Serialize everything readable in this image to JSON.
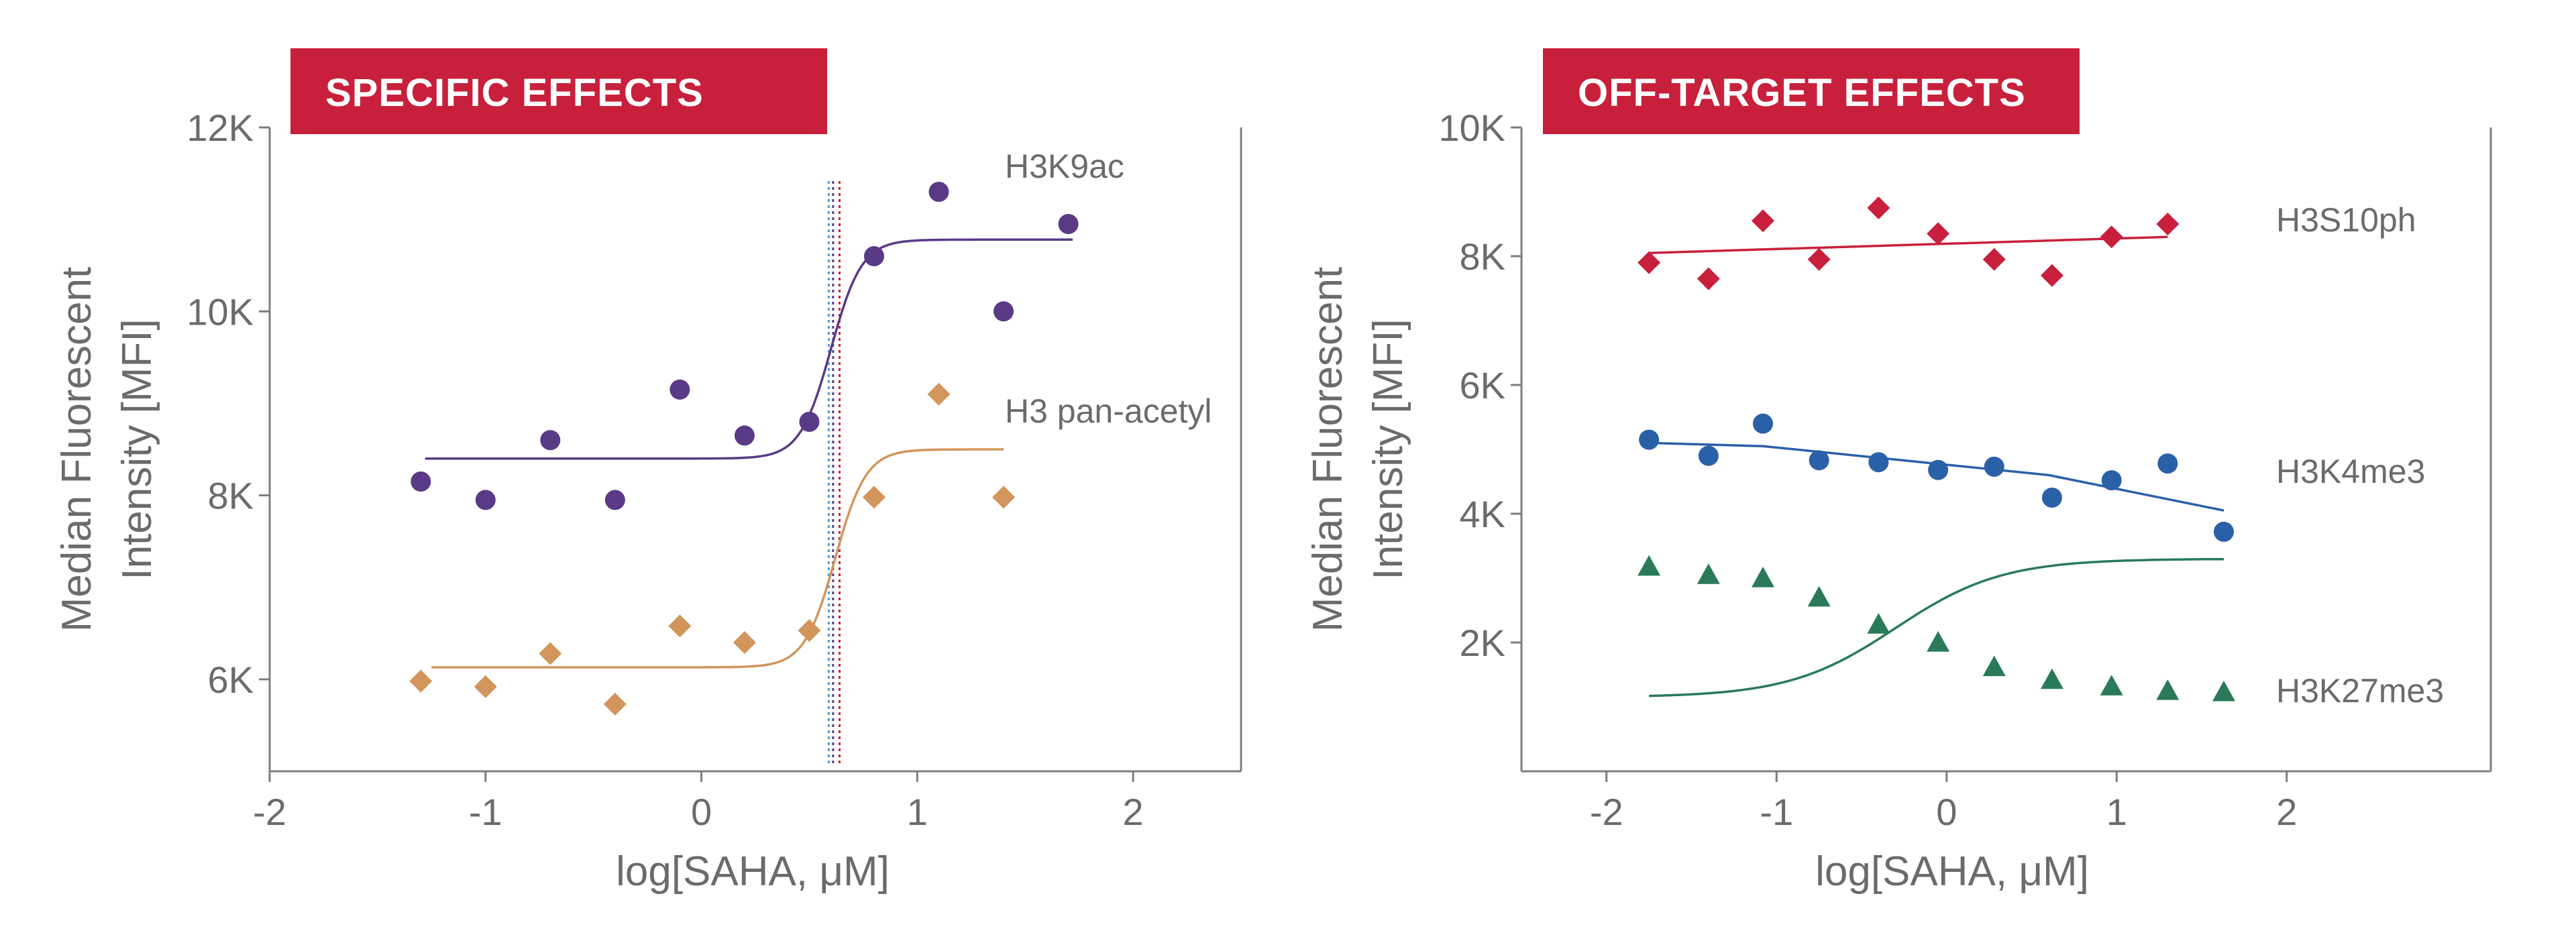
{
  "chart_data": [
    {
      "type": "scatter",
      "title": "SPECIFIC EFFECTS",
      "title_color": "#c8203c",
      "xlabel": "log[SAHA, μM]",
      "ylabel_lines": [
        "Median Fluorescent",
        "Intensity [MFI]"
      ],
      "xlim": [
        -2,
        2.5
      ],
      "ylim": [
        5000,
        12000
      ],
      "x_ticks": [
        -2,
        -1,
        0,
        1,
        2
      ],
      "x_tick_labels": [
        "-2",
        "-1",
        "0",
        "1",
        "2"
      ],
      "y_ticks": [
        6000,
        8000,
        10000,
        12000
      ],
      "y_tick_labels": [
        "6K",
        "8K",
        "10K",
        "12K"
      ],
      "axes_style": "left-bottom-right",
      "vertical_lines": [
        {
          "x": 0.59,
          "color": "#4a9ed8",
          "style": "dotted"
        },
        {
          "x": 0.61,
          "color": "#5a3a86",
          "style": "dotted"
        },
        {
          "x": 0.64,
          "color": "#c8203c",
          "style": "dotted"
        }
      ],
      "series": [
        {
          "name": "H3K9ac",
          "color": "#5a3a86",
          "marker": "circle",
          "x": [
            -1.3,
            -1.0,
            -0.7,
            -0.4,
            -0.1,
            0.2,
            0.5,
            0.8,
            1.1,
            1.4,
            1.7
          ],
          "y": [
            8150,
            7950,
            8600,
            7950,
            9150,
            8650,
            8800,
            10600,
            11300,
            10000,
            10950
          ],
          "fit": {
            "x_start": -1.28,
            "x_end": 1.72,
            "bottom": 8400,
            "top": 10780,
            "ec50_log": 0.6,
            "steepness": 14
          }
        },
        {
          "name": "H3 pan-acetyl",
          "color": "#d2955b",
          "marker": "diamond",
          "x": [
            -1.3,
            -1.0,
            -0.7,
            -0.4,
            -0.1,
            0.2,
            0.5,
            0.8,
            1.1,
            1.4
          ],
          "y": [
            5980,
            5920,
            6280,
            5730,
            6580,
            6400,
            6530,
            7980,
            9100,
            7980
          ],
          "fit": {
            "x_start": -1.25,
            "x_end": 1.4,
            "bottom": 6130,
            "top": 8500,
            "ec50_log": 0.62,
            "steepness": 14
          }
        }
      ]
    },
    {
      "type": "scatter",
      "title": "OFF-TARGET EFFECTS",
      "title_color": "#c8203c",
      "xlabel": "log[SAHA, μM]",
      "ylabel_lines": [
        "Median Fluorescent",
        "Intensity [MFI]"
      ],
      "xlim": [
        -2.5,
        3.2
      ],
      "ylim": [
        0,
        10000
      ],
      "x_ticks": [
        -2,
        -1,
        0,
        1,
        2
      ],
      "x_tick_labels": [
        "-2",
        "-1",
        "0",
        "1",
        "2"
      ],
      "y_ticks": [
        2000,
        4000,
        6000,
        8000,
        10000
      ],
      "y_tick_labels": [
        "2K",
        "4K",
        "6K",
        "8K",
        "10K"
      ],
      "axes_style": "left-bottom-right",
      "series": [
        {
          "name": "H3S10ph",
          "color": "#c8203c",
          "marker": "diamond",
          "x": [
            -1.75,
            -1.4,
            -1.08,
            -0.75,
            -0.4,
            -0.05,
            0.28,
            0.62,
            0.97,
            1.3
          ],
          "y": [
            7900,
            7650,
            8550,
            7950,
            8750,
            8350,
            7950,
            7700,
            8300,
            8500
          ],
          "fit_line": {
            "x": [
              -1.75,
              1.3
            ],
            "y": [
              8050,
              8300
            ]
          }
        },
        {
          "name": "H3K4me3",
          "color": "#2a60a8",
          "marker": "circle",
          "x": [
            -1.75,
            -1.4,
            -1.08,
            -0.75,
            -0.4,
            -0.05,
            0.28,
            0.62,
            0.97,
            1.3,
            1.63
          ],
          "y": [
            5150,
            4900,
            5400,
            4830,
            4800,
            4680,
            4730,
            4250,
            4520,
            4780,
            3720
          ],
          "fit_line": {
            "x": [
              -1.75,
              -1.08,
              0.6,
              1.63
            ],
            "y": [
              5100,
              5050,
              4600,
              4050
            ]
          }
        },
        {
          "name": "H3K27me3",
          "color": "#2a7a5a",
          "marker": "triangle",
          "x": [
            -1.75,
            -1.4,
            -1.08,
            -0.75,
            -0.4,
            -0.05,
            0.28,
            0.62,
            0.97,
            1.3,
            1.63
          ],
          "y": [
            3180,
            3050,
            3000,
            2700,
            2280,
            2000,
            1620,
            1420,
            1320,
            1250,
            1230
          ],
          "fit": {
            "x_start": -1.75,
            "x_end": 1.63,
            "bottom": 1150,
            "top": 3300,
            "ec50_log": -0.3,
            "steepness": 3.2
          }
        }
      ]
    }
  ]
}
